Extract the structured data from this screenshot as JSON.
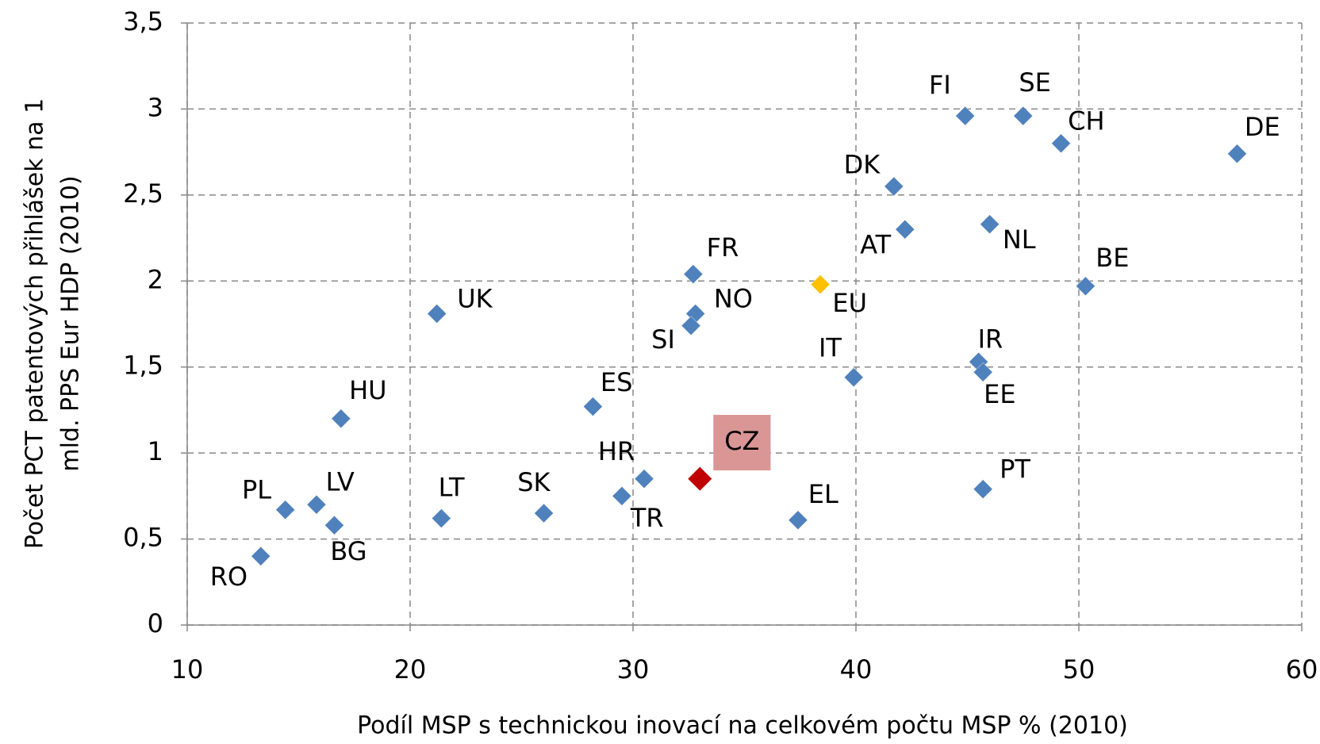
{
  "chart_data": {
    "type": "scatter",
    "xlabel": "Podíl MSP s technickou inovací na celkovém počtu MSP % (2010)",
    "ylabel": [
      "Počet PCT patentových přihlášek na 1",
      "mld. PPS Eur HDP (2010)"
    ],
    "point_labels": [
      "FI",
      "SE",
      "CH",
      "DE",
      "DK",
      "AT",
      "NL",
      "BE",
      "EU",
      "FR",
      "NO",
      "SI",
      "UK",
      "IR",
      "EE",
      "IT",
      "ES",
      "HU",
      "CZ",
      "HR",
      "TR",
      "PT",
      "SK",
      "LT",
      "EL",
      "PL",
      "LV",
      "BG",
      "RO"
    ],
    "x": [
      44.9,
      47.5,
      49.2,
      57.1,
      41.7,
      42.2,
      46.0,
      50.3,
      38.4,
      32.7,
      32.8,
      32.6,
      21.2,
      45.5,
      45.7,
      39.9,
      28.2,
      16.9,
      33.0,
      30.5,
      29.5,
      45.7,
      26.0,
      21.4,
      37.4,
      14.4,
      15.8,
      16.6,
      13.3
    ],
    "values": [
      2.96,
      2.96,
      2.8,
      2.74,
      2.55,
      2.3,
      2.33,
      1.97,
      1.98,
      2.04,
      1.81,
      1.74,
      1.81,
      1.53,
      1.47,
      1.44,
      1.27,
      1.2,
      0.85,
      0.85,
      0.75,
      0.79,
      0.65,
      0.62,
      0.61,
      0.67,
      0.7,
      0.58,
      0.4
    ],
    "point_colors": [
      "#4f81bd",
      "#4f81bd",
      "#4f81bd",
      "#4f81bd",
      "#4f81bd",
      "#4f81bd",
      "#4f81bd",
      "#4f81bd",
      "#ffc000",
      "#4f81bd",
      "#4f81bd",
      "#4f81bd",
      "#4f81bd",
      "#4f81bd",
      "#4f81bd",
      "#4f81bd",
      "#4f81bd",
      "#4f81bd",
      "#c00000",
      "#4f81bd",
      "#4f81bd",
      "#4f81bd",
      "#4f81bd",
      "#4f81bd",
      "#4f81bd",
      "#4f81bd",
      "#4f81bd",
      "#4f81bd",
      "#4f81bd"
    ],
    "xlim": [
      10,
      60
    ],
    "xticks": [
      10,
      20,
      30,
      40,
      50,
      60
    ],
    "ylim": [
      0,
      3.5
    ],
    "yticks": [
      0,
      {
        "value": 0.5,
        "label": "0,5"
      },
      1,
      {
        "value": 1.5,
        "label": "1,5"
      },
      2,
      {
        "value": 2.5,
        "label": "2,5"
      },
      3,
      {
        "value": 3.5,
        "label": "3,5"
      }
    ],
    "grid": true
  }
}
